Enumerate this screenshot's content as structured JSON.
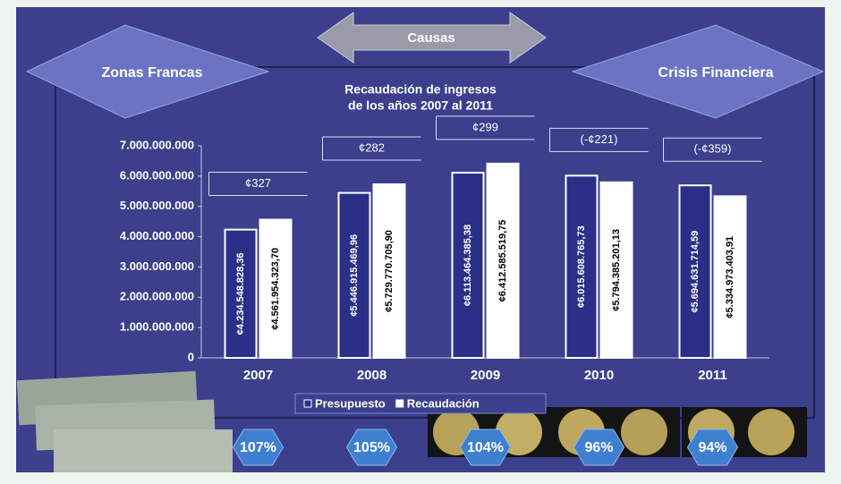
{
  "chart_data": {
    "type": "bar",
    "title": "Recaudación de ingresos",
    "subtitle": "de los años 2007 al 2011",
    "left_label": "Zonas Francas",
    "center_label": "Causas",
    "right_label": "Crisis Financiera",
    "categories": [
      "2007",
      "2008",
      "2009",
      "2010",
      "2011"
    ],
    "series": [
      {
        "name": "Presupuesto",
        "color": "#2b2f88",
        "values": [
          4234548828.36,
          5446915469.96,
          6113464385.38,
          6015608765.73,
          5694631714.59
        ],
        "value_labels": [
          "¢4.234.548.828,36",
          "¢5.446.915.469,96",
          "¢6.113.464.385,38",
          "¢6.015.608.765,73",
          "¢5.694.631.714,59"
        ]
      },
      {
        "name": "Recaudación",
        "color": "#ffffff",
        "values": [
          4561954323.7,
          5729770705.9,
          6412585519.75,
          5794385201.13,
          5334973403.91
        ],
        "value_labels": [
          "¢4.561.954.323,70",
          "¢5.729.770.705,90",
          "¢6.412.585.519,75",
          "¢5.794.385.201,13",
          "¢5.334.973.403,91"
        ]
      }
    ],
    "differences": [
      "¢327",
      "¢282",
      "¢299",
      "(-¢221)",
      "(-¢359)"
    ],
    "ratios": [
      "107%",
      "105%",
      "104%",
      "96%",
      "94%"
    ],
    "ylim": [
      0,
      7000000000
    ],
    "yticks": [
      0,
      {
        "value": 1000000000,
        "label": "1.000.000.000"
      },
      {
        "value": 2000000000,
        "label": "2.000.000.000"
      },
      {
        "value": 3000000000,
        "label": "3.000.000.000"
      },
      {
        "value": 4000000000,
        "label": "4.000.000.000"
      },
      {
        "value": 5000000000,
        "label": "5.000.000.000"
      },
      {
        "value": 6000000000,
        "label": "6.000.000.000"
      },
      {
        "value": 7000000000,
        "label": "7.000.000.000"
      }
    ],
    "legend": "bottom"
  }
}
